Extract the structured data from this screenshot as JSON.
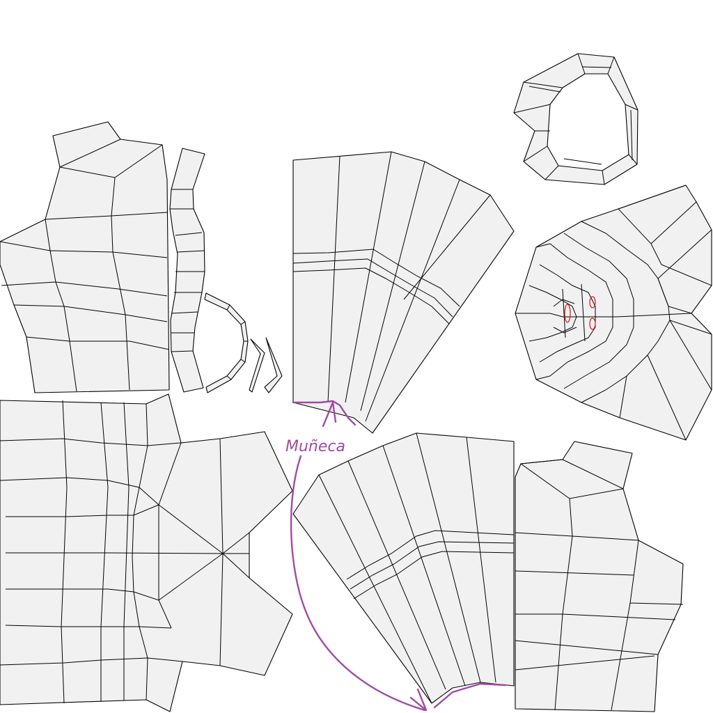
{
  "annotation": {
    "text": "Muñeca"
  },
  "colors": {
    "ink": "#a04aa4",
    "fill": "#f1f1f1",
    "stroke": "#000000",
    "seam_marks": "#d42020"
  },
  "islands": [
    "front-torso",
    "side-strip",
    "arm-curve",
    "upper-sleeve",
    "neck-ring",
    "hood-head",
    "back-torso",
    "lower-sleeve",
    "back-panel"
  ]
}
